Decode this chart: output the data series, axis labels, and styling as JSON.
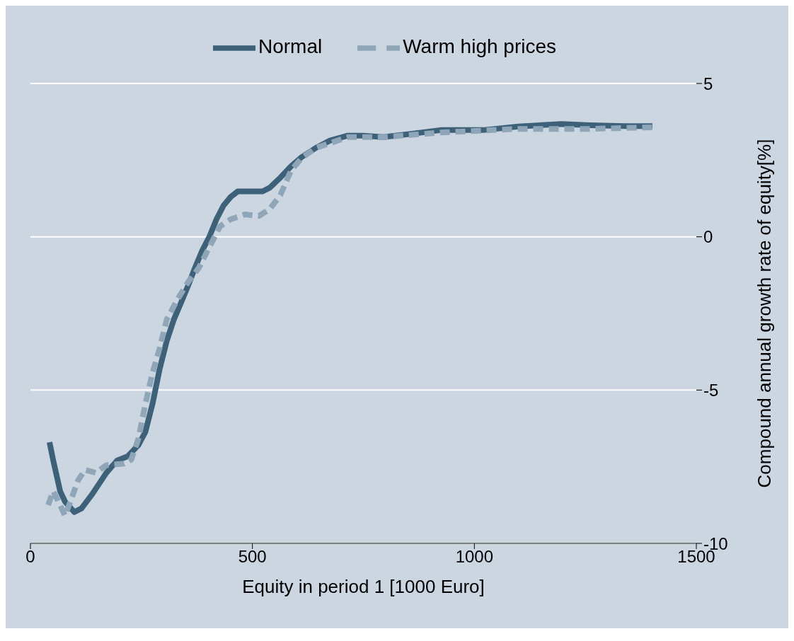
{
  "chart_data": {
    "type": "line",
    "xlabel": "Equity in period 1 [1000 Euro]",
    "ylabel": "Compound annual growth rate of equity[%]",
    "xlim": [
      0,
      1500
    ],
    "xticks": [
      0,
      500,
      1000,
      1500
    ],
    "ylim": [
      -10,
      5
    ],
    "yticks": [
      5,
      0,
      -5,
      -10
    ],
    "grid": "y",
    "legend": "top",
    "marker": "none",
    "series": [
      {
        "name": "Normal",
        "color": "#3d6179",
        "line_style": "solid",
        "x": [
          43,
          51,
          67,
          78,
          99,
          115,
          139,
          171,
          195,
          219,
          243,
          259,
          275,
          291,
          307,
          323,
          339,
          355,
          371,
          387,
          403,
          419,
          435,
          451,
          467,
          499,
          523,
          539,
          563,
          587,
          611,
          643,
          675,
          715,
          748,
          795,
          860,
          924,
          1020,
          1100,
          1196,
          1260,
          1340,
          1401
        ],
        "values": [
          -6.7,
          -7.27,
          -8.3,
          -8.64,
          -8.98,
          -8.86,
          -8.4,
          -7.7,
          -7.3,
          -7.16,
          -6.8,
          -6.36,
          -5.45,
          -4.32,
          -3.4,
          -2.7,
          -2.16,
          -1.6,
          -1.0,
          -0.45,
          0,
          0.57,
          1.02,
          1.3,
          1.48,
          1.48,
          1.48,
          1.6,
          1.93,
          2.3,
          2.6,
          2.9,
          3.14,
          3.3,
          3.3,
          3.25,
          3.36,
          3.48,
          3.48,
          3.6,
          3.68,
          3.64,
          3.61,
          3.61
        ]
      },
      {
        "name": "Warm high prices",
        "color": "#8fa6b8",
        "line_style": "dashed",
        "x": [
          40,
          51,
          62,
          78,
          91,
          107,
          123,
          147,
          171,
          211,
          227,
          243,
          259,
          275,
          291,
          307,
          331,
          355,
          379,
          403,
          427,
          451,
          483,
          515,
          539,
          563,
          587,
          611,
          643,
          715,
          795,
          924,
          1100,
          1260,
          1401
        ],
        "values": [
          -8.75,
          -8.3,
          -8.6,
          -9.1,
          -8.6,
          -7.95,
          -7.6,
          -7.7,
          -7.45,
          -7.4,
          -7.27,
          -6.6,
          -5.45,
          -4.43,
          -3.64,
          -2.7,
          -2.05,
          -1.48,
          -1.02,
          -0.34,
          0.34,
          0.57,
          0.73,
          0.68,
          0.9,
          1.36,
          2.16,
          2.57,
          2.9,
          3.25,
          3.25,
          3.4,
          3.52,
          3.52,
          3.57
        ]
      }
    ]
  }
}
